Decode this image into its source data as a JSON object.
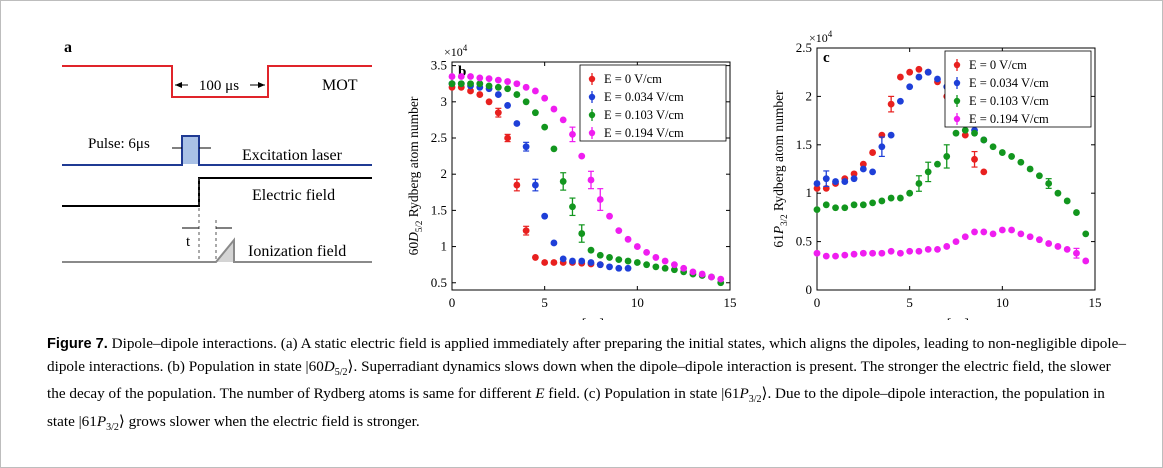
{
  "panel_a": {
    "letter": "a",
    "mot_label": "MOT",
    "mot_duration": "100 μs",
    "pulse_label": "Pulse: 6μs",
    "excitation_label": "Excitation laser",
    "electric_label": "Electric field",
    "t_label": "t",
    "ionization_label": "Ionization field",
    "colors": {
      "mot": "#e0242a",
      "laser": "#1f3a93",
      "pulse_fill": "#a9c1e6",
      "ionization": "#8a8a8a"
    }
  },
  "chart_data": [
    {
      "type": "scatter",
      "panel": "b",
      "ylabel_prefix": "60",
      "ylabel_sym": "D",
      "ylabel_sub": "5/2",
      "ylabel_suffix": " Rydberg atom number",
      "xlabel_var": "t",
      "xlabel_unit": "[μs]",
      "exponent": "×10",
      "exponent_power": "4",
      "xlim": [
        0,
        15
      ],
      "ylim": [
        0.4,
        3.55
      ],
      "xticks": [
        0,
        5,
        10,
        15
      ],
      "yticks": [
        0.5,
        1,
        1.5,
        2,
        2.5,
        3,
        3.5
      ],
      "legend": "top-right",
      "series": [
        {
          "name": "E = 0 V/cm",
          "color": "#e8201f",
          "x": [
            0,
            0.5,
            1,
            1.5,
            2,
            2.5,
            3,
            3.5,
            4,
            4.5,
            5,
            5.5,
            6,
            6.5,
            7,
            7.5,
            8
          ],
          "y": [
            3.2,
            3.2,
            3.15,
            3.1,
            3.0,
            2.85,
            2.5,
            1.85,
            1.22,
            0.85,
            0.78,
            0.78,
            0.78,
            0.78,
            0.77,
            0.76,
            0.75
          ],
          "err": [
            0,
            0,
            0,
            0,
            0,
            0.06,
            0.05,
            0.08,
            0.06,
            0,
            0,
            0,
            0,
            0,
            0,
            0,
            0
          ]
        },
        {
          "name": "E = 0.034 V/cm",
          "color": "#1e3fd8",
          "x": [
            0,
            0.5,
            1,
            1.5,
            2,
            2.5,
            3,
            3.5,
            4,
            4.5,
            5,
            5.5,
            6,
            6.5,
            7,
            7.5,
            8,
            8.5,
            9,
            9.5
          ],
          "y": [
            3.25,
            3.25,
            3.22,
            3.2,
            3.18,
            3.1,
            2.95,
            2.7,
            2.38,
            1.85,
            1.42,
            1.05,
            0.83,
            0.8,
            0.8,
            0.78,
            0.75,
            0.72,
            0.7,
            0.7
          ],
          "err": [
            0,
            0,
            0,
            0,
            0,
            0,
            0,
            0,
            0.06,
            0.08,
            0,
            0,
            0,
            0,
            0,
            0,
            0,
            0,
            0,
            0
          ]
        },
        {
          "name": "E = 0.103 V/cm",
          "color": "#12961e",
          "x": [
            0,
            0.5,
            1,
            1.5,
            2,
            2.5,
            3,
            3.5,
            4,
            4.5,
            5,
            5.5,
            6,
            6.5,
            7,
            7.5,
            8,
            8.5,
            9,
            9.5,
            10,
            10.5,
            11,
            11.5,
            12,
            12.5,
            13,
            13.5,
            14,
            14.5
          ],
          "y": [
            3.25,
            3.25,
            3.25,
            3.25,
            3.22,
            3.2,
            3.18,
            3.1,
            3.0,
            2.85,
            2.65,
            2.35,
            1.9,
            1.55,
            1.18,
            0.95,
            0.88,
            0.85,
            0.82,
            0.8,
            0.78,
            0.75,
            0.72,
            0.7,
            0.68,
            0.65,
            0.62,
            0.6,
            0.58,
            0.5
          ],
          "err": [
            0,
            0,
            0,
            0,
            0,
            0,
            0,
            0,
            0,
            0,
            0,
            0,
            0.12,
            0.12,
            0.12,
            0,
            0,
            0,
            0,
            0,
            0,
            0,
            0,
            0,
            0,
            0,
            0,
            0,
            0,
            0
          ]
        },
        {
          "name": "E = 0.194 V/cm",
          "color": "#ef1df0",
          "x": [
            0,
            0.5,
            1,
            1.5,
            2,
            2.5,
            3,
            3.5,
            4,
            4.5,
            5,
            5.5,
            6,
            6.5,
            7,
            7.5,
            8,
            8.5,
            9,
            9.5,
            10,
            10.5,
            11,
            11.5,
            12,
            12.5,
            13,
            13.5,
            14,
            14.5
          ],
          "y": [
            3.35,
            3.35,
            3.35,
            3.33,
            3.32,
            3.3,
            3.28,
            3.25,
            3.2,
            3.15,
            3.05,
            2.9,
            2.75,
            2.55,
            2.25,
            1.92,
            1.65,
            1.42,
            1.22,
            1.1,
            1.0,
            0.92,
            0.85,
            0.8,
            0.75,
            0.7,
            0.65,
            0.62,
            0.58,
            0.55
          ],
          "err": [
            0,
            0,
            0,
            0,
            0,
            0,
            0,
            0,
            0,
            0,
            0,
            0,
            0,
            0.1,
            0,
            0.12,
            0.15,
            0,
            0,
            0,
            0,
            0,
            0,
            0,
            0,
            0,
            0,
            0,
            0,
            0
          ]
        }
      ]
    },
    {
      "type": "scatter",
      "panel": "c",
      "ylabel_prefix": "61",
      "ylabel_sym": "P",
      "ylabel_sub": "3/2",
      "ylabel_suffix": " Rydberg atom number",
      "xlabel_var": "t",
      "xlabel_unit": "[μs]",
      "exponent": "×10",
      "exponent_power": "4",
      "xlim": [
        0,
        15
      ],
      "ylim": [
        0,
        2.5
      ],
      "xticks": [
        0,
        5,
        10,
        15
      ],
      "yticks": [
        0,
        0.5,
        1,
        1.5,
        2,
        2.5
      ],
      "legend": "top-right",
      "series": [
        {
          "name": "E = 0 V/cm",
          "color": "#e8201f",
          "x": [
            0,
            0.5,
            1,
            1.5,
            2,
            2.5,
            3,
            3.5,
            4,
            4.5,
            5,
            5.5,
            6,
            6.5,
            7,
            7.5,
            8,
            8.5,
            9
          ],
          "y": [
            1.05,
            1.05,
            1.1,
            1.15,
            1.2,
            1.3,
            1.42,
            1.6,
            1.92,
            2.2,
            2.25,
            2.28,
            2.25,
            2.15,
            2.0,
            1.8,
            1.6,
            1.35,
            1.22
          ],
          "err": [
            0,
            0,
            0,
            0,
            0,
            0,
            0,
            0,
            0.08,
            0,
            0,
            0,
            0,
            0,
            0,
            0,
            0,
            0.08,
            0
          ]
        },
        {
          "name": "E = 0.034 V/cm",
          "color": "#1e3fd8",
          "x": [
            0,
            0.5,
            1,
            1.5,
            2,
            2.5,
            3,
            3.5,
            4,
            4.5,
            5,
            5.5,
            6,
            6.5,
            7,
            7.5,
            8,
            8.5,
            9
          ],
          "y": [
            1.1,
            1.15,
            1.12,
            1.12,
            1.15,
            1.25,
            1.22,
            1.48,
            1.6,
            1.95,
            2.1,
            2.2,
            2.25,
            2.18,
            2.1,
            2.0,
            1.8,
            1.65,
            1.55
          ],
          "err": [
            0,
            0.08,
            0,
            0,
            0,
            0,
            0,
            0.1,
            0,
            0,
            0,
            0,
            0,
            0,
            0,
            0.08,
            0,
            0,
            0
          ]
        },
        {
          "name": "E = 0.103 V/cm",
          "color": "#12961e",
          "x": [
            0,
            0.5,
            1,
            1.5,
            2,
            2.5,
            3,
            3.5,
            4,
            4.5,
            5,
            5.5,
            6,
            6.5,
            7,
            7.5,
            8,
            8.5,
            9,
            9.5,
            10,
            10.5,
            11,
            11.5,
            12,
            12.5,
            13,
            13.5,
            14,
            14.5
          ],
          "y": [
            0.83,
            0.88,
            0.85,
            0.85,
            0.88,
            0.88,
            0.9,
            0.92,
            0.95,
            0.95,
            1.0,
            1.1,
            1.22,
            1.3,
            1.38,
            1.62,
            1.65,
            1.62,
            1.55,
            1.48,
            1.42,
            1.38,
            1.32,
            1.25,
            1.18,
            1.1,
            1.0,
            0.92,
            0.8,
            0.58
          ],
          "err": [
            0,
            0,
            0,
            0,
            0,
            0,
            0,
            0,
            0,
            0,
            0,
            0.08,
            0.1,
            0,
            0.12,
            0,
            0,
            0,
            0,
            0,
            0,
            0,
            0,
            0,
            0,
            0.05,
            0,
            0,
            0,
            0
          ]
        },
        {
          "name": "E = 0.194 V/cm",
          "color": "#ef1df0",
          "x": [
            0,
            0.5,
            1,
            1.5,
            2,
            2.5,
            3,
            3.5,
            4,
            4.5,
            5,
            5.5,
            6,
            6.5,
            7,
            7.5,
            8,
            8.5,
            9,
            9.5,
            10,
            10.5,
            11,
            11.5,
            12,
            12.5,
            13,
            13.5,
            14,
            14.5
          ],
          "y": [
            0.38,
            0.35,
            0.35,
            0.36,
            0.37,
            0.38,
            0.38,
            0.38,
            0.4,
            0.38,
            0.4,
            0.4,
            0.42,
            0.42,
            0.45,
            0.5,
            0.55,
            0.6,
            0.6,
            0.58,
            0.62,
            0.62,
            0.58,
            0.55,
            0.52,
            0.48,
            0.45,
            0.42,
            0.38,
            0.3
          ],
          "err": [
            0,
            0,
            0,
            0,
            0,
            0,
            0,
            0,
            0,
            0,
            0,
            0,
            0,
            0,
            0,
            0,
            0,
            0,
            0,
            0,
            0,
            0,
            0,
            0,
            0,
            0,
            0,
            0,
            0.05,
            0
          ]
        }
      ]
    }
  ],
  "caption": {
    "label": "Figure 7.",
    "part1": " Dipole–dipole interactions. (a) A static electric field is applied immediately after preparing the initial states, which aligns the dipoles, leading to non-negligible dipole–dipole interactions. (b) Population in state |60",
    "sym1": "D",
    "sub1": "5/2",
    "part2": "⟩. Superradiant dynamics slows down when the dipole–dipole interaction is present. The stronger the electric field, the slower the decay of the population. The number of Rydberg atoms is same for different ",
    "evar": "E",
    "part3": " field. (c) Population in state |61",
    "sym2": "P",
    "sub2": "3/2",
    "part4": "⟩. Due to the dipole–dipole interaction, the population in state |61",
    "sym3": "P",
    "sub3": "3/2",
    "part5": "⟩ grows slower when the electric field is stronger."
  }
}
